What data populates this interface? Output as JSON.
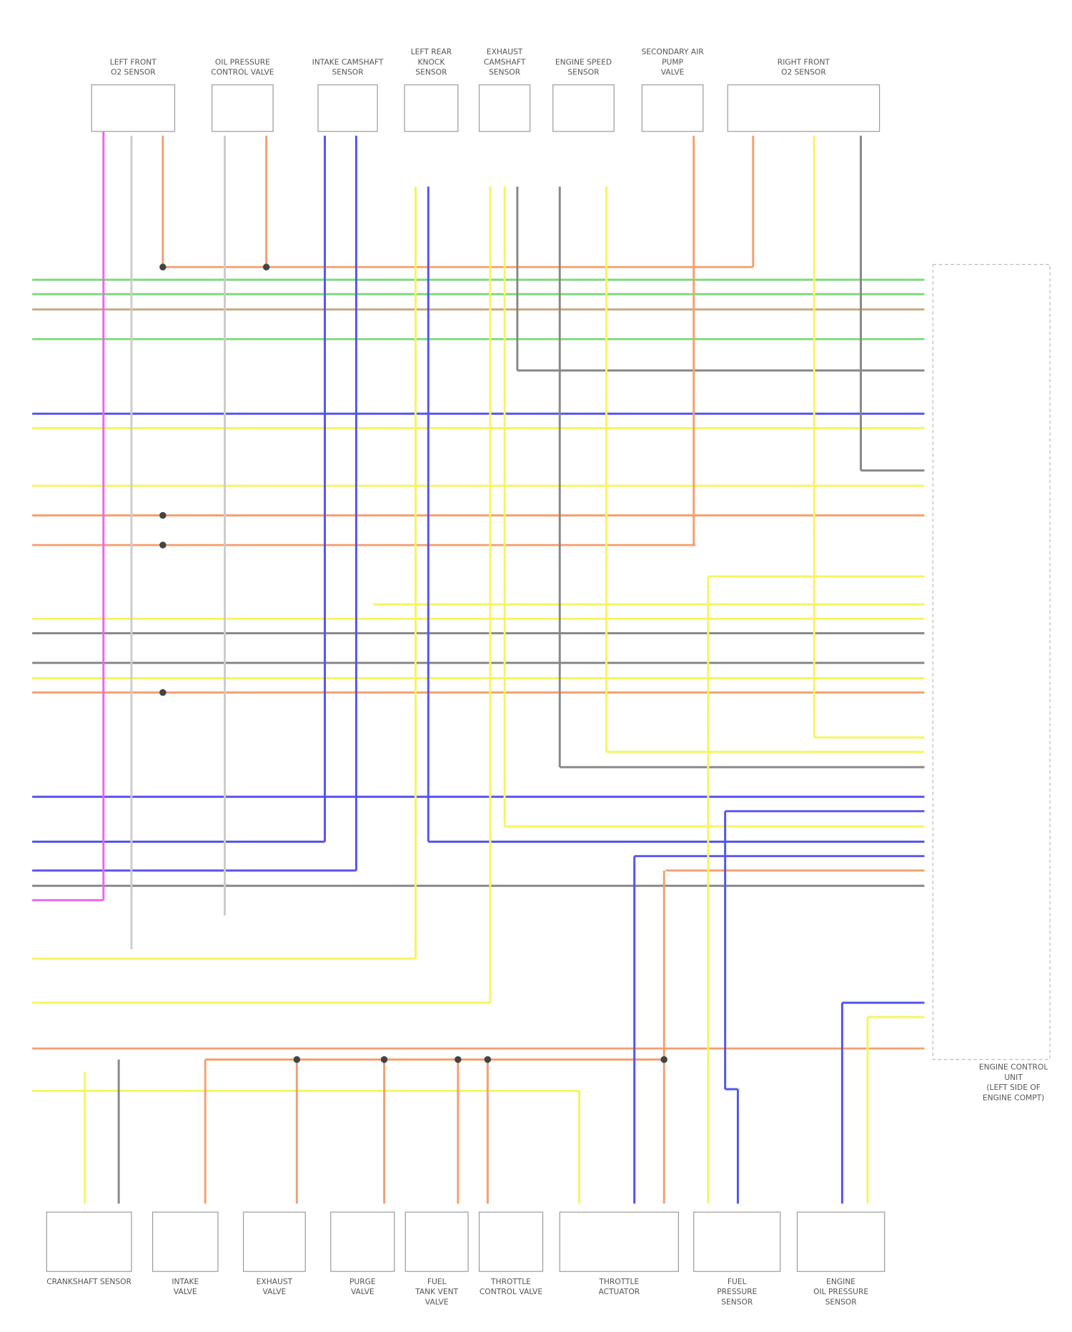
{
  "components_top": [
    {
      "lines": [
        "LEFT FRONT",
        "O2 SENSOR"
      ]
    },
    {
      "lines": [
        "OIL PRESSURE",
        "CONTROL VALVE"
      ]
    },
    {
      "lines": [
        "INTAKE CAMSHAFT",
        "SENSOR"
      ]
    },
    {
      "lines": [
        "LEFT REAR",
        "KNOCK",
        "SENSOR"
      ]
    },
    {
      "lines": [
        "EXHAUST",
        "CAMSHAFT",
        "SENSOR"
      ]
    },
    {
      "lines": [
        "ENGINE SPEED",
        "SENSOR"
      ]
    },
    {
      "lines": [
        "SECONDARY AIR",
        "PUMP",
        "VALVE"
      ]
    },
    {
      "lines": [
        "RIGHT FRONT",
        "O2 SENSOR"
      ]
    }
  ],
  "components_bottom": [
    {
      "lines": [
        "CRANKSHAFT SENSOR"
      ]
    },
    {
      "lines": [
        "INTAKE",
        "VALVE"
      ]
    },
    {
      "lines": [
        "EXHAUST",
        "VALVE"
      ]
    },
    {
      "lines": [
        "PURGE",
        "VALVE"
      ]
    },
    {
      "lines": [
        "FUEL",
        "TANK VENT",
        "VALVE"
      ]
    },
    {
      "lines": [
        "THROTTLE",
        "CONTROL VALVE"
      ]
    },
    {
      "lines": [
        "THROTTLE",
        "ACTUATOR"
      ]
    },
    {
      "lines": [
        "FUEL",
        "PRESSURE",
        "SENSOR"
      ]
    },
    {
      "lines": [
        "ENGINE",
        "OIL PRESSURE",
        "SENSOR"
      ]
    }
  ],
  "ecu": {
    "lines": [
      "ENGINE CONTROL",
      "UNIT",
      "(LEFT SIDE OF",
      "ENGINE COMPT)"
    ]
  }
}
